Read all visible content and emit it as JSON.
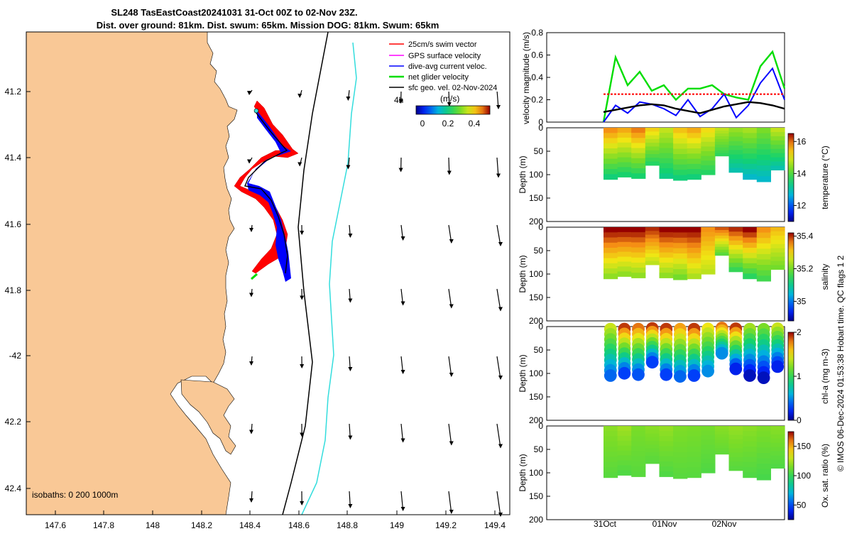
{
  "title": {
    "line1": "SL248 TasEastCoast20241031 31-Oct 00Z to 02-Nov 23Z.",
    "line2": "Dist. over ground: 81km. Dist. swum: 65km. Mission DOG: 81km. Swum: 65km"
  },
  "map": {
    "lat_ticks": [
      "41.2",
      "41.4",
      "41.6",
      "41.8",
      "-42",
      "42.2",
      "42.4"
    ],
    "lon_ticks": [
      "147.6",
      "147.8",
      "148",
      "148.2",
      "148.4",
      "148.6",
      "148.8",
      "149",
      "149.2",
      "149.4"
    ],
    "isobaths_label": "isobaths: 0   200  1000m",
    "legend": [
      {
        "label": "25cm/s swim vector",
        "color": "#ff0000"
      },
      {
        "label": "GPS surface velocity",
        "color": "#ff00ff"
      },
      {
        "label": "dive-avg current veloc.",
        "color": "#0000ff"
      },
      {
        "label": "net glider velocity",
        "color": "#00dd00"
      },
      {
        "label": "sfc geo. vel. 02-Nov-2024",
        "color": "#000000"
      }
    ],
    "colorbar_title": "(m/s)",
    "colorbar_ticks": [
      "0",
      "0.2",
      "0.4"
    ],
    "land_color": "#f9c896",
    "shelf_color": "#33dddd",
    "partial_label": "4h"
  },
  "chart_data": [
    {
      "type": "line",
      "title": "velocity magnitude",
      "ylabel": "velocity magnitude (m/s)",
      "ylim": [
        0,
        0.8
      ],
      "yticks": [
        "0",
        "0.2",
        "0.4",
        "0.6",
        "0.8"
      ],
      "x_days": [
        0,
        0.2,
        0.4,
        0.6,
        0.8,
        1.0,
        1.2,
        1.4,
        1.6,
        1.8,
        2.0,
        2.2,
        2.4,
        2.6,
        2.8,
        3.0
      ],
      "series": [
        {
          "name": "net glider velocity",
          "color": "#00dd00",
          "values": [
            0.0,
            0.58,
            0.33,
            0.45,
            0.28,
            0.33,
            0.2,
            0.3,
            0.3,
            0.33,
            0.25,
            0.22,
            0.2,
            0.5,
            0.63,
            0.3
          ]
        },
        {
          "name": "dive-avg current veloc.",
          "color": "#0000ff",
          "values": [
            0.0,
            0.15,
            0.08,
            0.18,
            0.16,
            0.12,
            0.06,
            0.2,
            0.05,
            0.12,
            0.25,
            0.04,
            0.15,
            0.35,
            0.48,
            0.2
          ]
        },
        {
          "name": "25cm/s swim vector",
          "color": "#ff0000",
          "values": [
            0.25,
            0.25,
            0.25,
            0.25,
            0.25,
            0.25,
            0.25,
            0.25,
            0.25,
            0.25,
            0.25,
            0.25,
            0.25,
            0.25,
            0.25,
            0.25
          ]
        },
        {
          "name": "sfc geo. vel.",
          "color": "#000000",
          "values": [
            0.09,
            0.11,
            0.13,
            0.15,
            0.16,
            0.15,
            0.12,
            0.1,
            0.08,
            0.11,
            0.14,
            0.16,
            0.18,
            0.17,
            0.15,
            0.12
          ]
        }
      ]
    },
    {
      "type": "heatmap",
      "title": "temperature",
      "ylabel": "Depth (m)",
      "colorbar_label": "temperature (°C)",
      "yticks": [
        "0",
        "50",
        "100",
        "150",
        "200"
      ],
      "colorbar_ticks": [
        "12",
        "14",
        "16"
      ],
      "vmin": 11,
      "vmax": 16.5,
      "profile_depths_m": [
        110,
        105,
        108,
        80,
        108,
        112,
        110,
        100,
        60,
        95,
        110,
        115,
        90
      ],
      "values_top": [
        15.8,
        15.6,
        15.9,
        15.3,
        14.8,
        15.4,
        15.6,
        15.2,
        14.8,
        14.5,
        14.6,
        14.3,
        14.8
      ],
      "values_bottom": [
        13.4,
        13.5,
        13.5,
        13.6,
        13.3,
        13.4,
        13.4,
        13.6,
        13.7,
        13.0,
        12.8,
        12.8,
        13.0
      ]
    },
    {
      "type": "heatmap",
      "title": "salinity",
      "ylabel": "Depth (m)",
      "colorbar_label": "salinity",
      "yticks": [
        "0",
        "50",
        "100",
        "150",
        "200"
      ],
      "colorbar_ticks": [
        "35",
        "35.2",
        "35.4"
      ],
      "vmin": 34.88,
      "vmax": 35.42,
      "profile_depths_m": [
        110,
        105,
        108,
        80,
        108,
        112,
        110,
        100,
        60,
        95,
        110,
        115,
        90
      ],
      "values_top": [
        35.42,
        35.42,
        35.42,
        35.4,
        35.42,
        35.42,
        35.42,
        35.35,
        35.38,
        35.4,
        35.42,
        35.35,
        35.32
      ],
      "values_bottom": [
        35.22,
        35.22,
        35.22,
        35.25,
        35.22,
        35.2,
        35.24,
        35.25,
        35.18,
        35.15,
        35.14,
        35.16,
        35.2
      ]
    },
    {
      "type": "scatter",
      "title": "chl-a",
      "ylabel": "Depth (m)",
      "colorbar_label": "chl-a (mg m-3)",
      "yticks": [
        "0",
        "50",
        "100",
        "150",
        "200"
      ],
      "colorbar_ticks": [
        "0",
        "1",
        "2"
      ],
      "vmin": 0,
      "vmax": 2,
      "profile_depths_m": [
        110,
        105,
        108,
        80,
        108,
        112,
        110,
        100,
        60,
        95,
        110,
        115,
        90
      ],
      "values_top": [
        1.4,
        1.9,
        1.8,
        1.9,
        1.9,
        1.7,
        1.9,
        1.5,
        1.8,
        1.9,
        1.3,
        1.2,
        1.4
      ],
      "values_bottom": [
        0.4,
        0.3,
        0.35,
        0.3,
        0.3,
        0.4,
        0.3,
        0.5,
        0.5,
        0.2,
        0.1,
        0.1,
        0.2
      ]
    },
    {
      "type": "heatmap",
      "title": "oxygen saturation",
      "ylabel": "Depth (m)",
      "colorbar_label": "Ox. sat. ratio (%)",
      "yticks": [
        "0",
        "50",
        "100",
        "150",
        "200"
      ],
      "colorbar_ticks": [
        "50",
        "100",
        "150"
      ],
      "vmin": 25,
      "vmax": 175,
      "profile_depths_m": [
        110,
        105,
        108,
        80,
        108,
        112,
        110,
        100,
        60,
        95,
        110,
        115,
        90
      ],
      "values_top": [
        118,
        122,
        115,
        118,
        120,
        116,
        115,
        114,
        118,
        120,
        118,
        116,
        118
      ],
      "values_bottom": [
        108,
        106,
        108,
        108,
        106,
        108,
        108,
        106,
        110,
        108,
        106,
        104,
        106
      ]
    }
  ],
  "xaxis": {
    "ticks": [
      "31Oct",
      "01Nov",
      "02Nov"
    ]
  },
  "footer": "© IMOS 06-Dec-2024 01:53:38 Hobart time. QC flags 1  2"
}
